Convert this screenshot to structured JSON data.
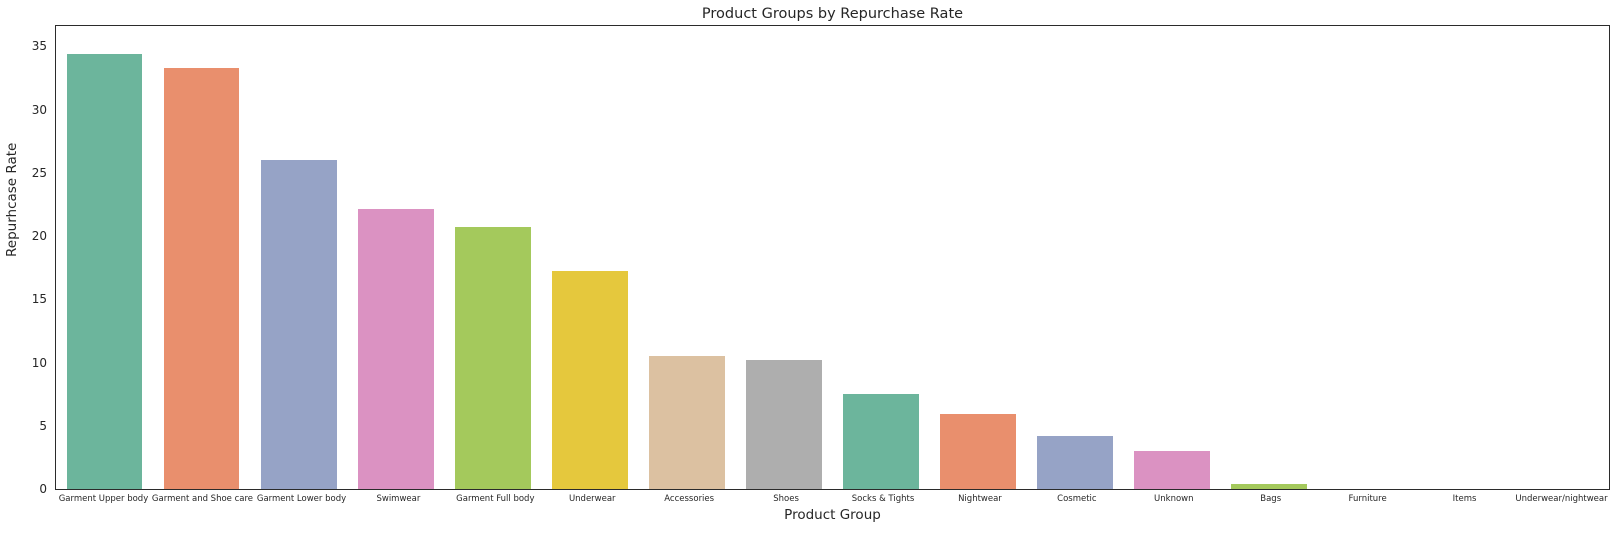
{
  "chart_data": {
    "type": "bar",
    "title": "Product Groups by Repurchase Rate",
    "xlabel": "Product Group",
    "ylabel": "Repurhcase Rate",
    "categories": [
      "Garment Upper body",
      "Garment and Shoe care",
      "Garment Lower body",
      "Swimwear",
      "Garment Full body",
      "Underwear",
      "Accessories",
      "Shoes",
      "Socks & Tights",
      "Nightwear",
      "Cosmetic",
      "Unknown",
      "Bags",
      "Furniture",
      "Items",
      "Underwear/nightwear"
    ],
    "values": [
      34.4,
      33.3,
      26.0,
      22.1,
      20.7,
      17.2,
      10.5,
      10.2,
      7.5,
      5.9,
      4.2,
      3.0,
      0.4,
      0,
      0,
      0
    ],
    "yticks": [
      0,
      5,
      10,
      15,
      20,
      25,
      30,
      35
    ],
    "ylim": [
      0,
      36.6
    ],
    "grid": false,
    "legend_position": "none",
    "palette": [
      "#6cb59c",
      "#e98f6d",
      "#96a3c6",
      "#db92c2",
      "#a4c95c",
      "#e5c83d",
      "#dcc1a1",
      "#aeaeae"
    ],
    "spine_color": "#2b2b2b",
    "background_color": "#ffffff"
  }
}
